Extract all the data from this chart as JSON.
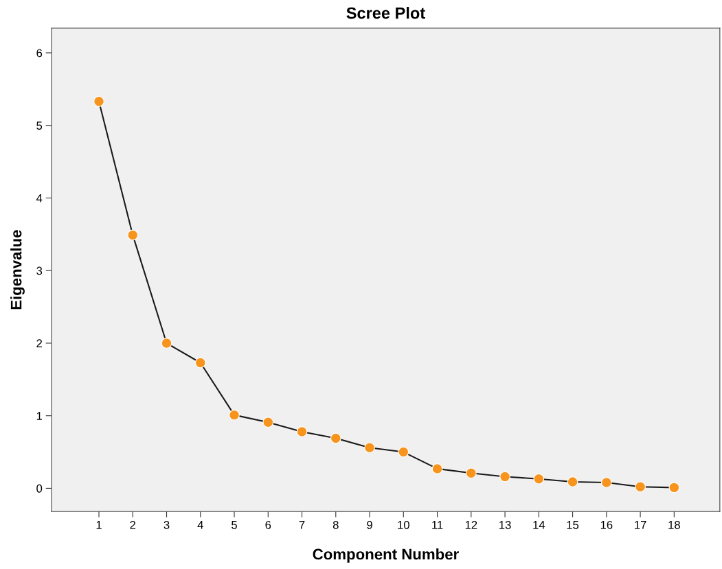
{
  "chart_data": {
    "type": "line",
    "title": "Scree Plot",
    "xlabel": "Component Number",
    "ylabel": "Eigenvalue",
    "categories": [
      "1",
      "2",
      "3",
      "4",
      "5",
      "6",
      "7",
      "8",
      "9",
      "10",
      "11",
      "12",
      "13",
      "14",
      "15",
      "16",
      "17",
      "18"
    ],
    "series": [
      {
        "color": "#f7941d",
        "values": [
          5.33,
          3.49,
          2.0,
          1.73,
          1.01,
          0.91,
          0.78,
          0.69,
          0.56,
          0.5,
          0.27,
          0.21,
          0.16,
          0.13,
          0.09,
          0.08,
          0.02,
          0.01
        ]
      }
    ],
    "ylim": [
      -0.32,
      6.34
    ],
    "yticks": [
      0,
      1,
      2,
      3,
      4,
      5,
      6
    ],
    "marker": "circle",
    "line_style": "solid",
    "grid": false,
    "legend": false
  }
}
